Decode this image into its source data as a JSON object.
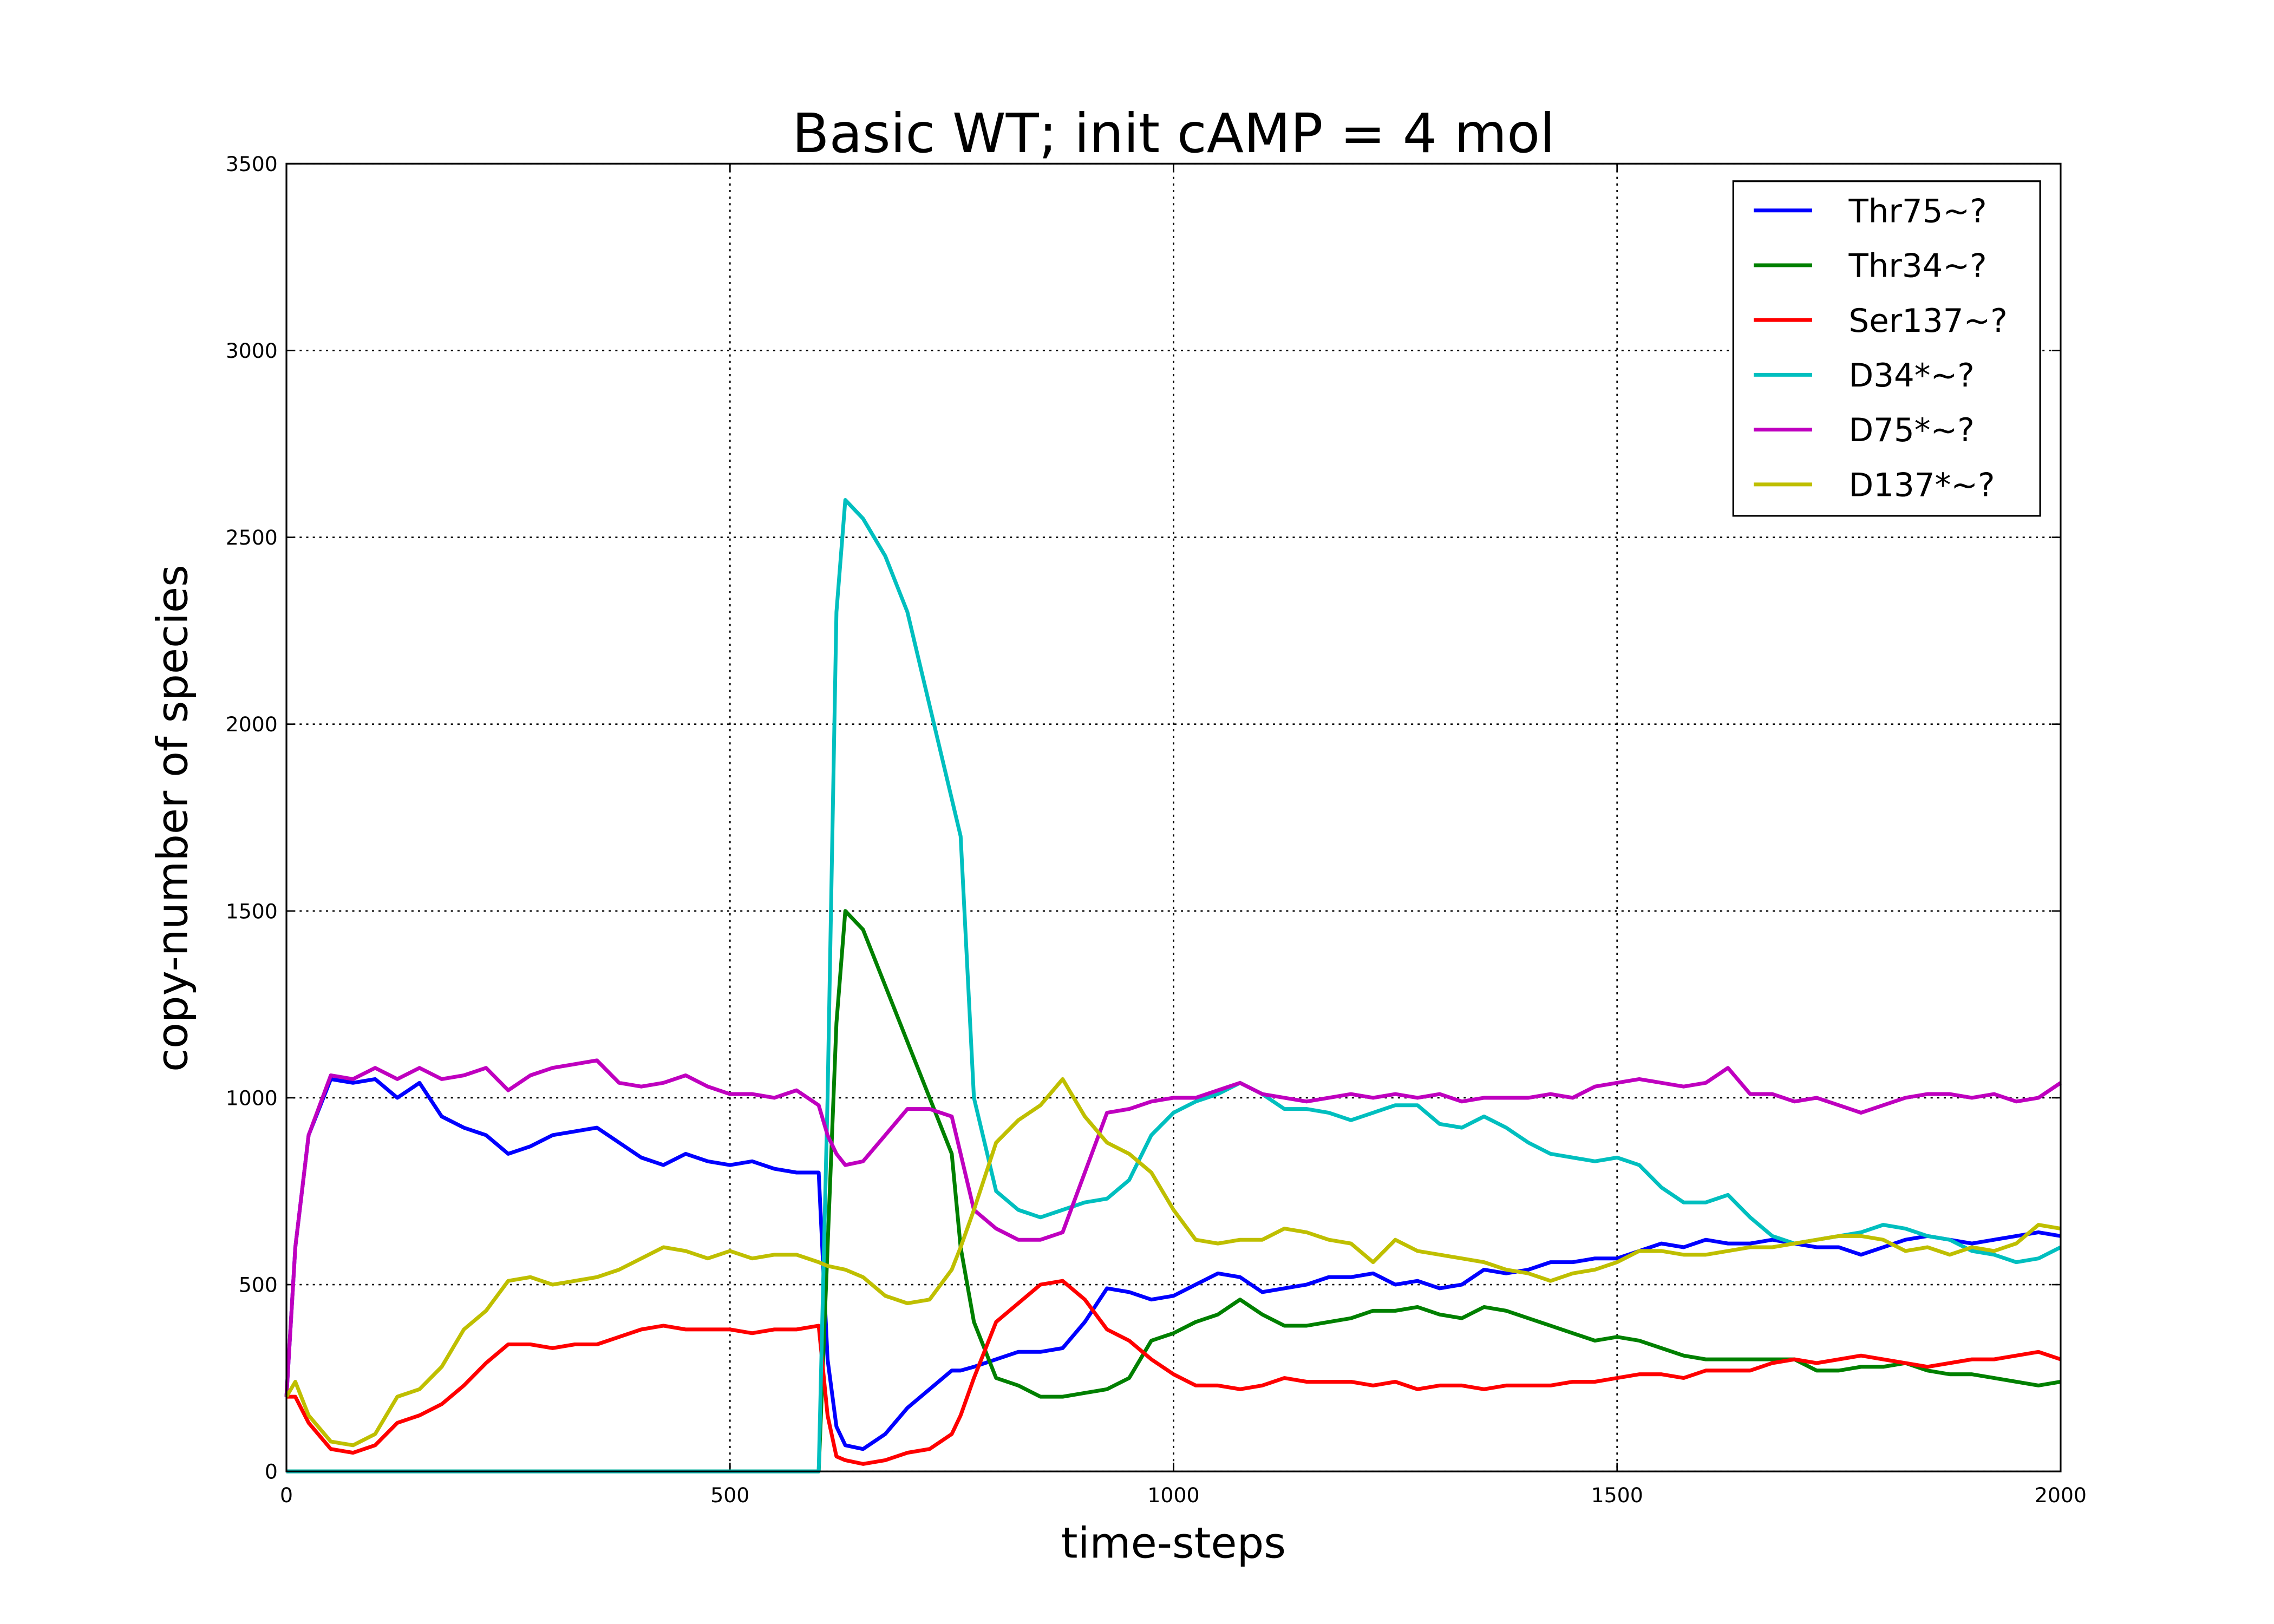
{
  "chart_data": {
    "type": "line",
    "title": "Basic WT; init cAMP = 4 mol",
    "x_label": "time-steps",
    "y_label": "copy-number of species",
    "xlim": [
      0,
      2000
    ],
    "ylim": [
      0,
      3500
    ],
    "xticks": [
      0,
      500,
      1000,
      1500,
      2000
    ],
    "yticks": [
      0,
      500,
      1000,
      1500,
      2000,
      2500,
      3000,
      3500
    ],
    "grid": true,
    "legend": "upper right",
    "x": [
      0,
      10,
      25,
      50,
      75,
      100,
      125,
      150,
      175,
      200,
      225,
      250,
      275,
      300,
      325,
      350,
      375,
      400,
      425,
      450,
      475,
      500,
      525,
      550,
      575,
      600,
      610,
      620,
      630,
      650,
      675,
      700,
      725,
      750,
      760,
      775,
      800,
      825,
      850,
      875,
      900,
      925,
      950,
      975,
      1000,
      1025,
      1050,
      1075,
      1100,
      1125,
      1150,
      1175,
      1200,
      1225,
      1250,
      1275,
      1300,
      1325,
      1350,
      1375,
      1400,
      1425,
      1450,
      1475,
      1500,
      1525,
      1550,
      1575,
      1600,
      1625,
      1650,
      1675,
      1700,
      1725,
      1750,
      1775,
      1800,
      1825,
      1850,
      1875,
      1900,
      1925,
      1950,
      1975,
      2000
    ],
    "series": [
      {
        "name": "Thr75~?",
        "color": "#0000ff",
        "values": [
          200,
          600,
          900,
          1050,
          1040,
          1050,
          1000,
          1040,
          950,
          920,
          900,
          850,
          870,
          900,
          910,
          920,
          880,
          840,
          820,
          850,
          830,
          820,
          830,
          810,
          800,
          800,
          300,
          120,
          70,
          60,
          100,
          170,
          220,
          270,
          270,
          280,
          300,
          320,
          320,
          330,
          400,
          490,
          480,
          460,
          470,
          500,
          530,
          520,
          480,
          490,
          500,
          520,
          520,
          530,
          500,
          510,
          490,
          500,
          540,
          530,
          540,
          560,
          560,
          570,
          570,
          590,
          610,
          600,
          620,
          610,
          610,
          620,
          610,
          600,
          600,
          580,
          600,
          620,
          630,
          620,
          610,
          620,
          630,
          640,
          630
        ]
      },
      {
        "name": "Thr34~?",
        "color": "#008000",
        "values": [
          0,
          0,
          0,
          0,
          0,
          0,
          0,
          0,
          0,
          0,
          0,
          0,
          0,
          0,
          0,
          0,
          0,
          0,
          0,
          0,
          0,
          0,
          0,
          0,
          0,
          0,
          600,
          1200,
          1500,
          1450,
          1300,
          1150,
          1000,
          850,
          600,
          400,
          250,
          230,
          200,
          200,
          210,
          220,
          250,
          350,
          370,
          400,
          420,
          460,
          420,
          390,
          390,
          400,
          410,
          430,
          430,
          440,
          420,
          410,
          440,
          430,
          410,
          390,
          370,
          350,
          360,
          350,
          330,
          310,
          300,
          300,
          300,
          300,
          300,
          270,
          270,
          280,
          280,
          290,
          270,
          260,
          260,
          250,
          240,
          230,
          240
        ]
      },
      {
        "name": "Ser137~?",
        "color": "#ff0000",
        "values": [
          200,
          200,
          130,
          60,
          50,
          70,
          130,
          150,
          180,
          230,
          290,
          340,
          340,
          330,
          340,
          340,
          360,
          380,
          390,
          380,
          380,
          380,
          370,
          380,
          380,
          390,
          150,
          40,
          30,
          20,
          30,
          50,
          60,
          100,
          150,
          250,
          400,
          450,
          500,
          510,
          460,
          380,
          350,
          300,
          260,
          230,
          230,
          220,
          230,
          250,
          240,
          240,
          240,
          230,
          240,
          220,
          230,
          230,
          220,
          230,
          230,
          230,
          240,
          240,
          250,
          260,
          260,
          250,
          270,
          270,
          270,
          290,
          300,
          290,
          300,
          310,
          300,
          290,
          280,
          290,
          300,
          300,
          310,
          320,
          300
        ]
      },
      {
        "name": "D34*~?",
        "color": "#00bfbf",
        "values": [
          0,
          0,
          0,
          0,
          0,
          0,
          0,
          0,
          0,
          0,
          0,
          0,
          0,
          0,
          0,
          0,
          0,
          0,
          0,
          0,
          0,
          0,
          0,
          0,
          0,
          0,
          1000,
          2300,
          2600,
          2550,
          2450,
          2300,
          2050,
          1800,
          1700,
          1000,
          750,
          700,
          680,
          700,
          720,
          730,
          780,
          900,
          960,
          990,
          1010,
          1040,
          1010,
          970,
          970,
          960,
          940,
          960,
          980,
          980,
          930,
          920,
          950,
          920,
          880,
          850,
          840,
          830,
          840,
          820,
          760,
          720,
          720,
          740,
          680,
          630,
          610,
          620,
          630,
          640,
          660,
          650,
          630,
          620,
          590,
          580,
          560,
          570,
          600
        ]
      },
      {
        "name": "D75*~?",
        "color": "#bf00bf",
        "values": [
          200,
          600,
          900,
          1060,
          1050,
          1080,
          1050,
          1080,
          1050,
          1060,
          1080,
          1020,
          1060,
          1080,
          1090,
          1100,
          1040,
          1030,
          1040,
          1060,
          1030,
          1010,
          1010,
          1000,
          1020,
          980,
          900,
          850,
          820,
          830,
          900,
          970,
          970,
          950,
          850,
          700,
          650,
          620,
          620,
          640,
          800,
          960,
          970,
          990,
          1000,
          1000,
          1020,
          1040,
          1010,
          1000,
          990,
          1000,
          1010,
          1000,
          1010,
          1000,
          1010,
          990,
          1000,
          1000,
          1000,
          1010,
          1000,
          1030,
          1040,
          1050,
          1040,
          1030,
          1040,
          1080,
          1010,
          1010,
          990,
          1000,
          980,
          960,
          980,
          1000,
          1010,
          1010,
          1000,
          1010,
          990,
          1000,
          1040
        ]
      },
      {
        "name": "D137*~?",
        "color": "#bfbf00",
        "values": [
          200,
          240,
          150,
          80,
          70,
          100,
          200,
          220,
          280,
          380,
          430,
          510,
          520,
          500,
          510,
          520,
          540,
          570,
          600,
          590,
          570,
          590,
          570,
          580,
          580,
          560,
          550,
          545,
          540,
          520,
          470,
          450,
          460,
          540,
          600,
          700,
          880,
          940,
          980,
          1050,
          950,
          880,
          850,
          800,
          700,
          620,
          610,
          620,
          620,
          650,
          640,
          620,
          610,
          560,
          620,
          590,
          580,
          570,
          560,
          540,
          530,
          510,
          530,
          540,
          560,
          590,
          590,
          580,
          580,
          590,
          600,
          600,
          610,
          620,
          630,
          630,
          620,
          590,
          600,
          580,
          600,
          590,
          610,
          660,
          650
        ]
      }
    ]
  }
}
